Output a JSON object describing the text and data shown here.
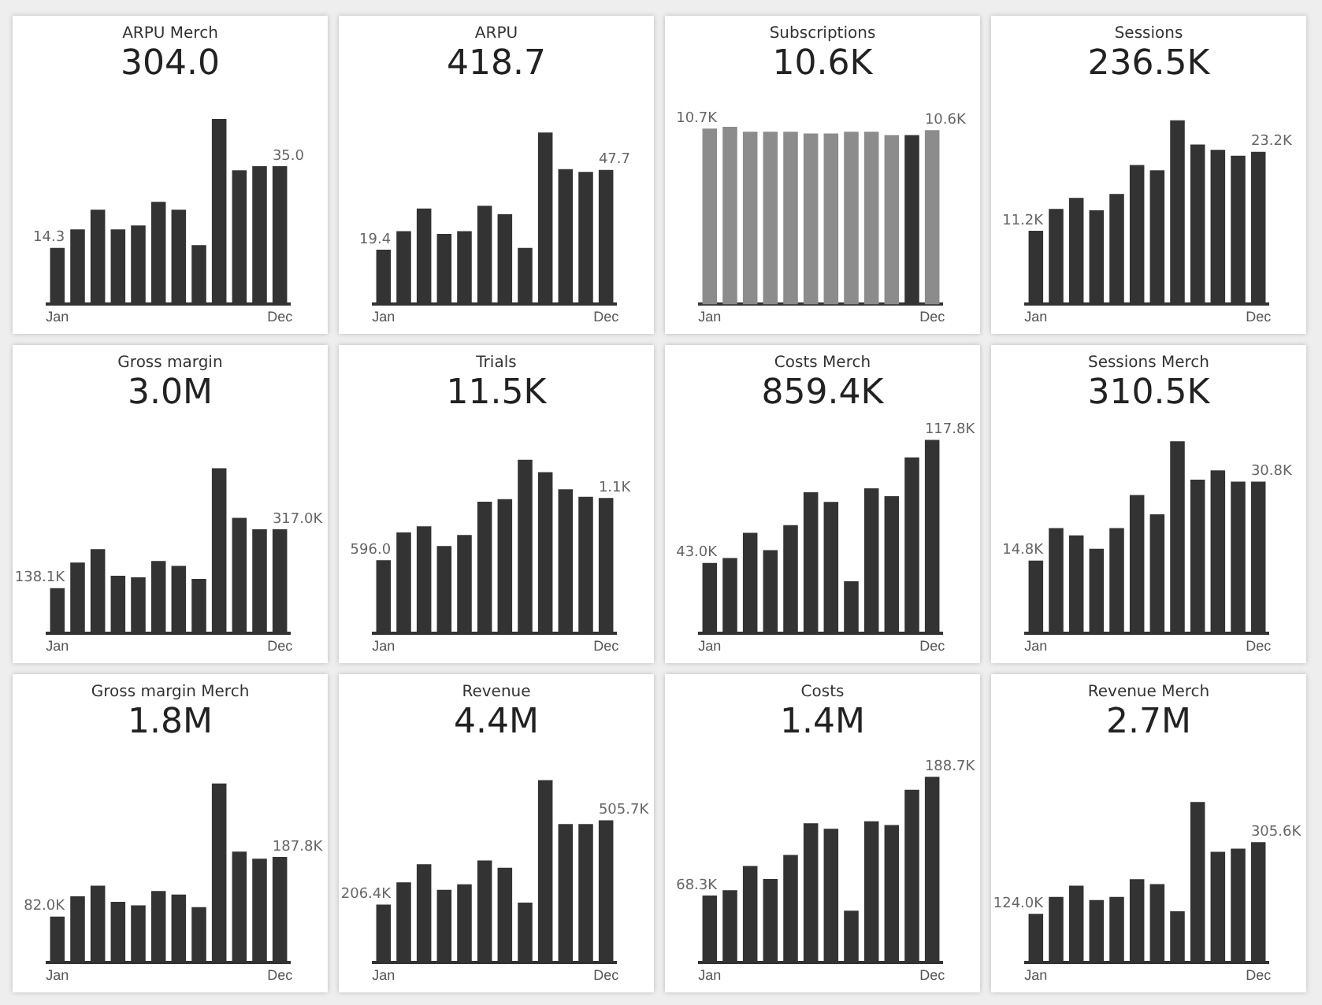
{
  "chart_data": [
    {
      "type": "bar",
      "title": "ARPU Merch",
      "subtitle": "304.0",
      "color": "#333333",
      "categories": [
        "Jan",
        null,
        null,
        null,
        null,
        null,
        null,
        null,
        null,
        null,
        null,
        "Dec"
      ],
      "values": [
        14.3,
        19,
        24,
        19,
        20,
        26,
        24,
        15,
        47,
        34,
        35,
        35.0
      ],
      "value_labels": [
        "14.3",
        null,
        null,
        null,
        null,
        null,
        null,
        null,
        null,
        null,
        null,
        "35.0"
      ]
    },
    {
      "type": "bar",
      "title": "ARPU",
      "subtitle": "418.7",
      "color": "#333333",
      "categories": [
        "Jan",
        null,
        null,
        null,
        null,
        null,
        null,
        null,
        null,
        null,
        null,
        "Dec"
      ],
      "values": [
        19.4,
        26,
        34,
        25,
        26,
        35,
        32,
        20,
        61,
        48,
        47,
        47.7
      ],
      "value_labels": [
        "19.4",
        null,
        null,
        null,
        null,
        null,
        null,
        null,
        null,
        null,
        null,
        "47.7"
      ]
    },
    {
      "type": "bar",
      "title": "Subscriptions",
      "subtitle": "10.6K",
      "colors": [
        "#8c8c8c",
        "#8c8c8c",
        "#8c8c8c",
        "#8c8c8c",
        "#8c8c8c",
        "#8c8c8c",
        "#8c8c8c",
        "#8c8c8c",
        "#8c8c8c",
        "#8c8c8c",
        "#333333",
        "#8c8c8c"
      ],
      "categories": [
        "Jan",
        null,
        null,
        null,
        null,
        null,
        null,
        null,
        null,
        null,
        null,
        "Dec"
      ],
      "values": [
        10700,
        10800,
        10500,
        10500,
        10500,
        10400,
        10400,
        10500,
        10500,
        10300,
        10300,
        10600
      ],
      "value_labels": [
        "10.7K",
        null,
        null,
        null,
        null,
        null,
        null,
        null,
        null,
        null,
        null,
        "10.6K"
      ]
    },
    {
      "type": "bar",
      "title": "Sessions",
      "subtitle": "236.5K",
      "color": "#333333",
      "categories": [
        "Jan",
        null,
        null,
        null,
        null,
        null,
        null,
        null,
        null,
        null,
        null,
        "Dec"
      ],
      "values": [
        11200,
        14500,
        16200,
        14300,
        16800,
        21200,
        20400,
        28000,
        24300,
        23500,
        22600,
        23200
      ],
      "value_labels": [
        "11.2K",
        null,
        null,
        null,
        null,
        null,
        null,
        null,
        null,
        null,
        null,
        "23.2K"
      ]
    },
    {
      "type": "bar",
      "title": "Gross margin",
      "subtitle": "3.0M",
      "color": "#333333",
      "categories": [
        "Jan",
        null,
        null,
        null,
        null,
        null,
        null,
        null,
        null,
        null,
        null,
        "Dec"
      ],
      "values": [
        138100,
        216000,
        257000,
        176000,
        171000,
        221000,
        206000,
        166000,
        503000,
        352000,
        317000,
        317000
      ],
      "value_labels": [
        "138.1K",
        null,
        null,
        null,
        null,
        null,
        null,
        null,
        null,
        null,
        null,
        "317.0K"
      ]
    },
    {
      "type": "bar",
      "title": "Trials",
      "subtitle": "11.5K",
      "color": "#333333",
      "categories": [
        "Jan",
        null,
        null,
        null,
        null,
        null,
        null,
        null,
        null,
        null,
        null,
        "Dec"
      ],
      "values": [
        596,
        820,
        870,
        710,
        800,
        1070,
        1090,
        1410,
        1310,
        1170,
        1110,
        1100
      ],
      "value_labels": [
        "596.0",
        null,
        null,
        null,
        null,
        null,
        null,
        null,
        null,
        null,
        null,
        "1.1K"
      ]
    },
    {
      "type": "bar",
      "title": "Costs Merch",
      "subtitle": "859.4K",
      "color": "#333333",
      "categories": [
        "Jan",
        null,
        null,
        null,
        null,
        null,
        null,
        null,
        null,
        null,
        null,
        "Dec"
      ],
      "values": [
        43000,
        45900,
        61300,
        50700,
        66000,
        86000,
        80100,
        31800,
        88400,
        83600,
        107200,
        117800
      ],
      "value_labels": [
        "43.0K",
        null,
        null,
        null,
        null,
        null,
        null,
        null,
        null,
        null,
        null,
        "117.8K"
      ]
    },
    {
      "type": "bar",
      "title": "Sessions Merch",
      "subtitle": "310.5K",
      "color": "#333333",
      "categories": [
        "Jan",
        null,
        null,
        null,
        null,
        null,
        null,
        null,
        null,
        null,
        null,
        "Dec"
      ],
      "values": [
        14800,
        21400,
        19900,
        17200,
        21400,
        28100,
        24200,
        39000,
        31200,
        33100,
        30800,
        30800
      ],
      "value_labels": [
        "14.8K",
        null,
        null,
        null,
        null,
        null,
        null,
        null,
        null,
        null,
        null,
        "30.8K"
      ]
    },
    {
      "type": "bar",
      "title": "Gross margin Merch",
      "subtitle": "1.8M",
      "color": "#333333",
      "categories": [
        "Jan",
        null,
        null,
        null,
        null,
        null,
        null,
        null,
        null,
        null,
        null,
        "Dec"
      ],
      "values": [
        82000,
        117800,
        136900,
        108200,
        101900,
        127300,
        121000,
        98700,
        318300,
        197300,
        184600,
        187800
      ],
      "value_labels": [
        "82.0K",
        null,
        null,
        null,
        null,
        null,
        null,
        null,
        null,
        null,
        null,
        "187.8K"
      ]
    },
    {
      "type": "bar",
      "title": "Revenue",
      "subtitle": "4.4M",
      "color": "#333333",
      "categories": [
        "Jan",
        null,
        null,
        null,
        null,
        null,
        null,
        null,
        null,
        null,
        null,
        "Dec"
      ],
      "values": [
        206400,
        285300,
        350100,
        259300,
        278800,
        363000,
        337100,
        213900,
        648300,
        492700,
        492700,
        505700
      ],
      "value_labels": [
        "206.4K",
        null,
        null,
        null,
        null,
        null,
        null,
        null,
        null,
        null,
        null,
        "505.7K"
      ]
    },
    {
      "type": "bar",
      "title": "Costs",
      "subtitle": "1.4M",
      "color": "#333333",
      "categories": [
        "Jan",
        null,
        null,
        null,
        null,
        null,
        null,
        null,
        null,
        null,
        null,
        "Dec"
      ],
      "values": [
        68300,
        73600,
        98100,
        84900,
        109400,
        141500,
        135900,
        52800,
        143400,
        139600,
        175500,
        188700
      ],
      "value_labels": [
        "68.3K",
        null,
        null,
        null,
        null,
        null,
        null,
        null,
        null,
        null,
        null,
        "188.7K"
      ]
    },
    {
      "type": "bar",
      "title": "Revenue Merch",
      "subtitle": "2.7M",
      "color": "#333333",
      "categories": [
        "Jan",
        null,
        null,
        null,
        null,
        null,
        null,
        null,
        null,
        null,
        null,
        "Dec"
      ],
      "values": [
        124000,
        167100,
        195600,
        158900,
        167100,
        211900,
        199700,
        130400,
        407500,
        281200,
        289300,
        305600
      ],
      "value_labels": [
        "124.0K",
        null,
        null,
        null,
        null,
        null,
        null,
        null,
        null,
        null,
        null,
        "305.6K"
      ]
    }
  ]
}
